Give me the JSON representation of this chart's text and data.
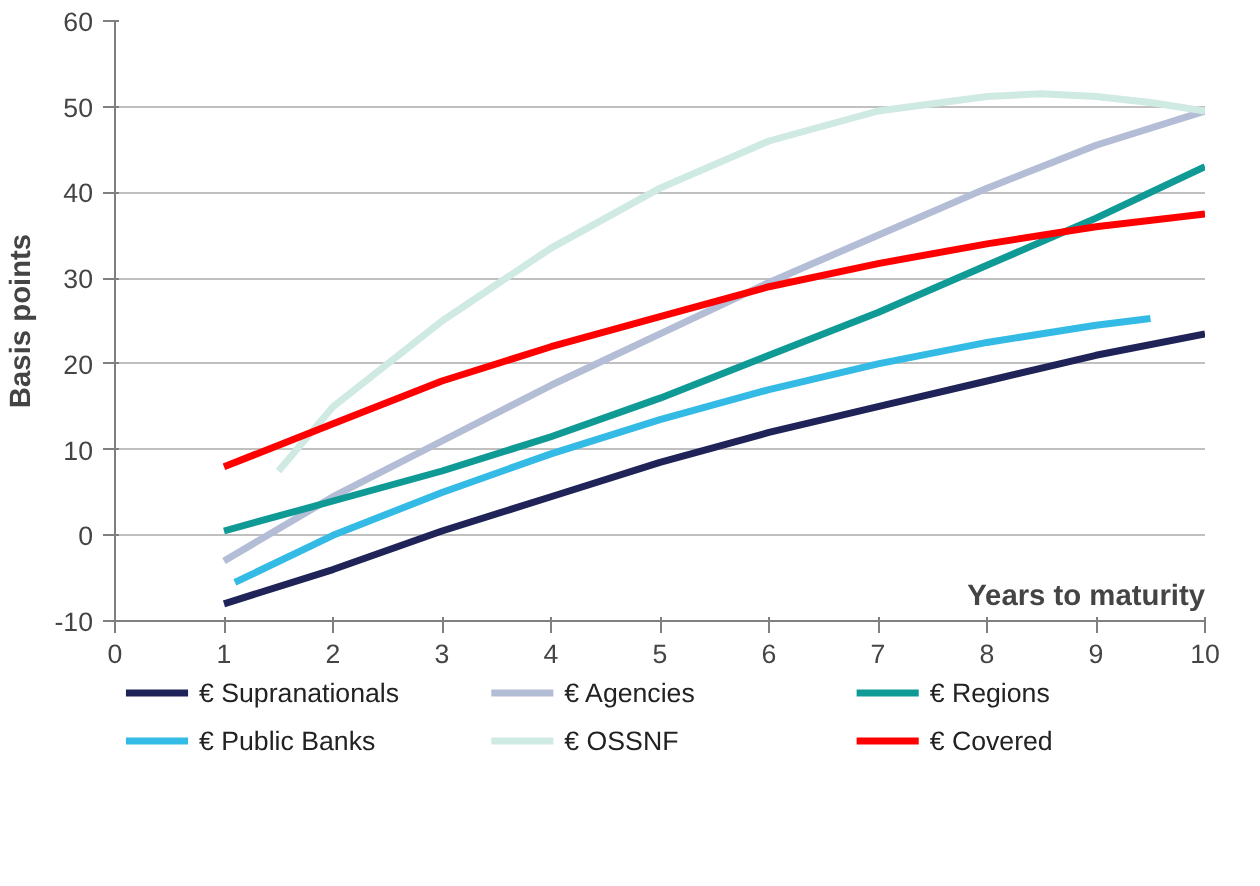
{
  "chart_data": {
    "type": "line",
    "xlabel": "Years to maturity",
    "ylabel": "Basis points",
    "xlim": [
      0,
      10
    ],
    "ylim": [
      -10,
      60
    ],
    "xticks": [
      0,
      1,
      2,
      3,
      4,
      5,
      6,
      7,
      8,
      9,
      10
    ],
    "yticks": [
      -10,
      0,
      10,
      20,
      30,
      40,
      50,
      60
    ],
    "grid": "y",
    "legend": "bottom",
    "marker": "none",
    "line_style": "solid",
    "series": [
      {
        "name": "€ Supranationals",
        "color": "#1f2357",
        "x": [
          1,
          2,
          3,
          4,
          5,
          6,
          7,
          8,
          9,
          10
        ],
        "values": [
          -8,
          -4,
          0.5,
          4.5,
          8.5,
          12,
          15,
          18,
          21,
          23.5
        ]
      },
      {
        "name": "€ Agencies",
        "color": "#b4bdd6",
        "x": [
          1,
          2,
          3,
          4,
          5,
          6,
          7,
          8,
          9,
          10
        ],
        "values": [
          -3,
          4.5,
          11,
          17.5,
          23.5,
          29.5,
          35,
          40.5,
          45.5,
          49.5
        ]
      },
      {
        "name": "€ Regions",
        "color": "#109a96",
        "x": [
          1,
          2,
          3,
          4,
          5,
          6,
          7,
          8,
          9,
          10
        ],
        "values": [
          0.5,
          4,
          7.5,
          11.5,
          16,
          21,
          26,
          31.5,
          37,
          43
        ]
      },
      {
        "name": "€ Public Banks",
        "color": "#33bbe6",
        "x": [
          1.1,
          2,
          3,
          4,
          5,
          6,
          7,
          8,
          9,
          9.5
        ],
        "values": [
          -5.5,
          0,
          5,
          9.5,
          13.5,
          17,
          20,
          22.5,
          24.5,
          25.3
        ]
      },
      {
        "name": "€ OSSNF",
        "color": "#cfe9e3",
        "x": [
          1.5,
          2,
          3,
          4,
          5,
          6,
          7,
          8,
          8.5,
          9,
          9.5,
          10
        ],
        "values": [
          7.5,
          15,
          25,
          33.5,
          40.5,
          46,
          49.5,
          51.2,
          51.5,
          51.2,
          50.5,
          49.5
        ]
      },
      {
        "name": "€ Covered",
        "color": "#ff0000",
        "x": [
          1,
          2,
          3,
          4,
          5,
          6,
          7,
          8,
          9,
          10
        ],
        "values": [
          8,
          13,
          18,
          22,
          25.5,
          29,
          31.7,
          34,
          36,
          37.5
        ]
      }
    ]
  }
}
